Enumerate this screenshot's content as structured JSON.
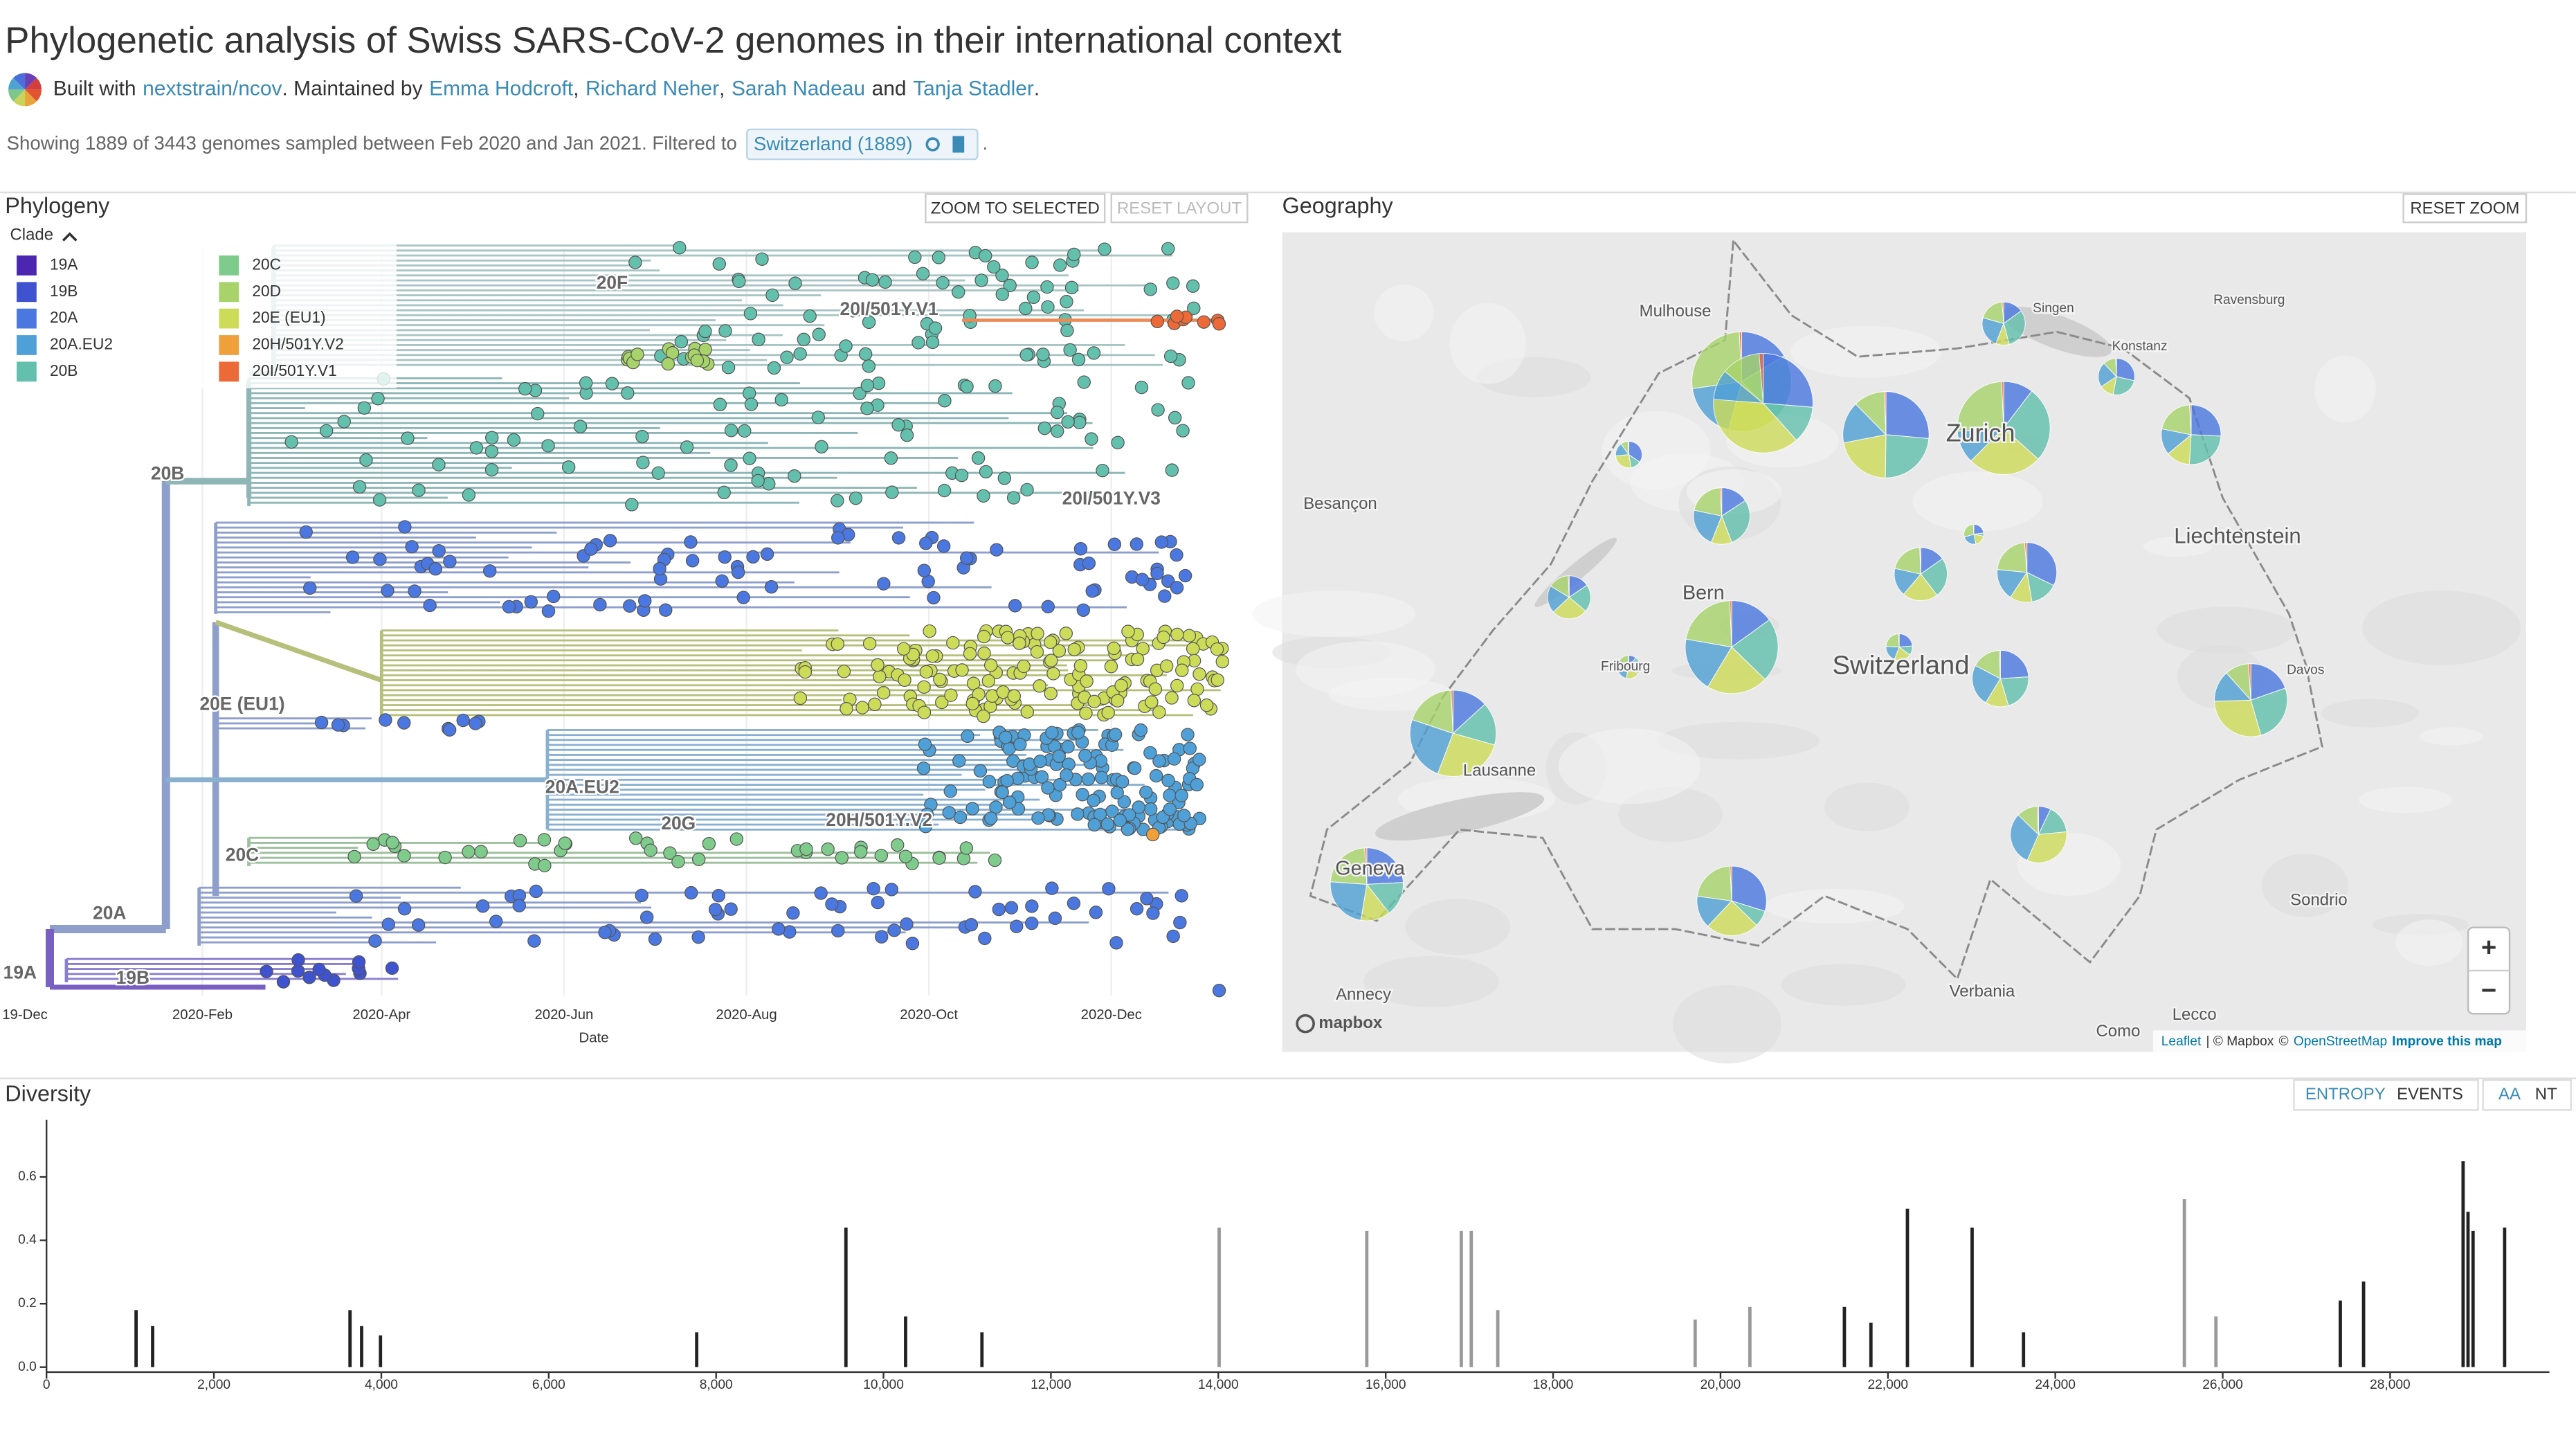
{
  "header": {
    "title": "Phylogenetic analysis of Swiss SARS-CoV-2 genomes in their international context",
    "byline": [
      {
        "text": "Built with"
      },
      {
        "text": "nextstrain/ncov",
        "link": true
      },
      {
        "text": ". Maintained by"
      },
      {
        "text": "Emma Hodcroft",
        "link": true
      },
      {
        "text": ","
      },
      {
        "text": "Richard Neher",
        "link": true
      },
      {
        "text": ","
      },
      {
        "text": "Sarah Nadeau",
        "link": true
      },
      {
        "text": "and"
      },
      {
        "text": "Tanja Stadler",
        "link": true
      },
      {
        "text": "."
      }
    ],
    "summary": "Showing 1889 of 3443 genomes sampled between Feb 2020 and Jan 2021. Filtered to",
    "filter_chip": "Switzerland (1889)",
    "summary_end": "."
  },
  "phylogeny": {
    "title": "Phylogeny",
    "buttons": [
      "ZOOM TO SELECTED",
      "RESET LAYOUT"
    ],
    "legend_title": "Clade",
    "legend": [
      {
        "name": "19A",
        "color": "#4b26b1"
      },
      {
        "name": "19B",
        "color": "#3f52d0"
      },
      {
        "name": "20A",
        "color": "#4a78e0"
      },
      {
        "name": "20A.EU2",
        "color": "#4fa0d6"
      },
      {
        "name": "20B",
        "color": "#62c0ad"
      },
      {
        "name": "20C",
        "color": "#7fcb8b"
      },
      {
        "name": "20D",
        "color": "#a7d36a"
      },
      {
        "name": "20E (EU1)",
        "color": "#cddc58"
      },
      {
        "name": "20H/501Y.V2",
        "color": "#f0a03a"
      },
      {
        "name": "20I/501Y.V1",
        "color": "#ec6a38"
      }
    ],
    "clade_labels": [
      "20F",
      "20I/501Y.V1",
      "20B",
      "20I/501Y.V3",
      "20E (EU1)",
      "20A.EU2",
      "20G",
      "20H/501Y.V2",
      "20C",
      "20A",
      "19A",
      "19B"
    ],
    "date_ticks": [
      "19-Dec",
      "2020-Feb",
      "2020-Apr",
      "2020-Jun",
      "2020-Aug",
      "2020-Oct",
      "2020-Dec"
    ],
    "date_label": "Date"
  },
  "geography": {
    "title": "Geography",
    "reset_button": "RESET ZOOM",
    "places": [
      "Mulhouse",
      "Besançon",
      "Bern",
      "Zurich",
      "Liechtenstein",
      "Switzerland",
      "Lausanne",
      "Geneva",
      "Annecy",
      "Verbania",
      "Sondrio",
      "Como",
      "Lecco",
      "Singen",
      "Ravensburg",
      "Konstanz",
      "Fribourg",
      "Davos"
    ],
    "zoom_in": "+",
    "zoom_out": "−",
    "logo": "mapbox",
    "attribution": [
      "Leaflet",
      "| © Mapbox",
      "©",
      "OpenStreetMap",
      "Improve this map"
    ]
  },
  "diversity": {
    "title": "Diversity",
    "toggles": [
      "ENTROPY",
      "EVENTS",
      "AA",
      "NT"
    ]
  },
  "chart_data": {
    "type": "bar",
    "x": [
      1070,
      1268,
      3626,
      3765,
      3990,
      7768,
      9551,
      10264,
      11176,
      14010,
      15774,
      16903,
      17022,
      17339,
      19697,
      20351,
      21480,
      21797,
      22233,
      23006,
      23620,
      25542,
      25919,
      27405,
      27683,
      28872,
      28931,
      28991,
      29368
    ],
    "values": [
      0.18,
      0.13,
      0.18,
      0.13,
      0.1,
      0.11,
      0.44,
      0.16,
      0.11,
      0.44,
      0.43,
      0.43,
      0.43,
      0.18,
      0.15,
      0.19,
      0.19,
      0.14,
      0.5,
      0.44,
      0.11,
      0.53,
      0.16,
      0.21,
      0.27,
      0.65,
      0.49,
      0.43,
      0.44
    ],
    "colors": [
      "#222",
      "#222",
      "#222",
      "#222",
      "#222",
      "#222",
      "#222",
      "#222",
      "#222",
      "#999",
      "#999",
      "#999",
      "#999",
      "#999",
      "#999",
      "#999",
      "#222",
      "#222",
      "#222",
      "#222",
      "#222",
      "#999",
      "#999",
      "#222",
      "#222",
      "#222",
      "#222",
      "#222",
      "#222"
    ],
    "xlim": [
      0,
      29903
    ],
    "ylim": [
      0,
      0.78
    ],
    "xticks": [
      0,
      {
        "value": 2000,
        "label": "2,000"
      },
      {
        "value": 4000,
        "label": "4,000"
      },
      {
        "value": 6000,
        "label": "6,000"
      },
      {
        "value": 8000,
        "label": "8,000"
      },
      {
        "value": 10000,
        "label": "10,000"
      },
      {
        "value": 12000,
        "label": "12,000"
      },
      {
        "value": 14000,
        "label": "14,000"
      },
      {
        "value": 16000,
        "label": "16,000"
      },
      {
        "value": 18000,
        "label": "18,000"
      },
      {
        "value": 20000,
        "label": "20,000"
      },
      {
        "value": 22000,
        "label": "22,000"
      },
      {
        "value": 24000,
        "label": "24,000"
      },
      {
        "value": 26000,
        "label": "26,000"
      },
      {
        "value": 28000,
        "label": "28,000"
      }
    ],
    "yticks": [
      {
        "value": 0,
        "label": "0.0"
      },
      0.2,
      0.4,
      0.6
    ]
  }
}
